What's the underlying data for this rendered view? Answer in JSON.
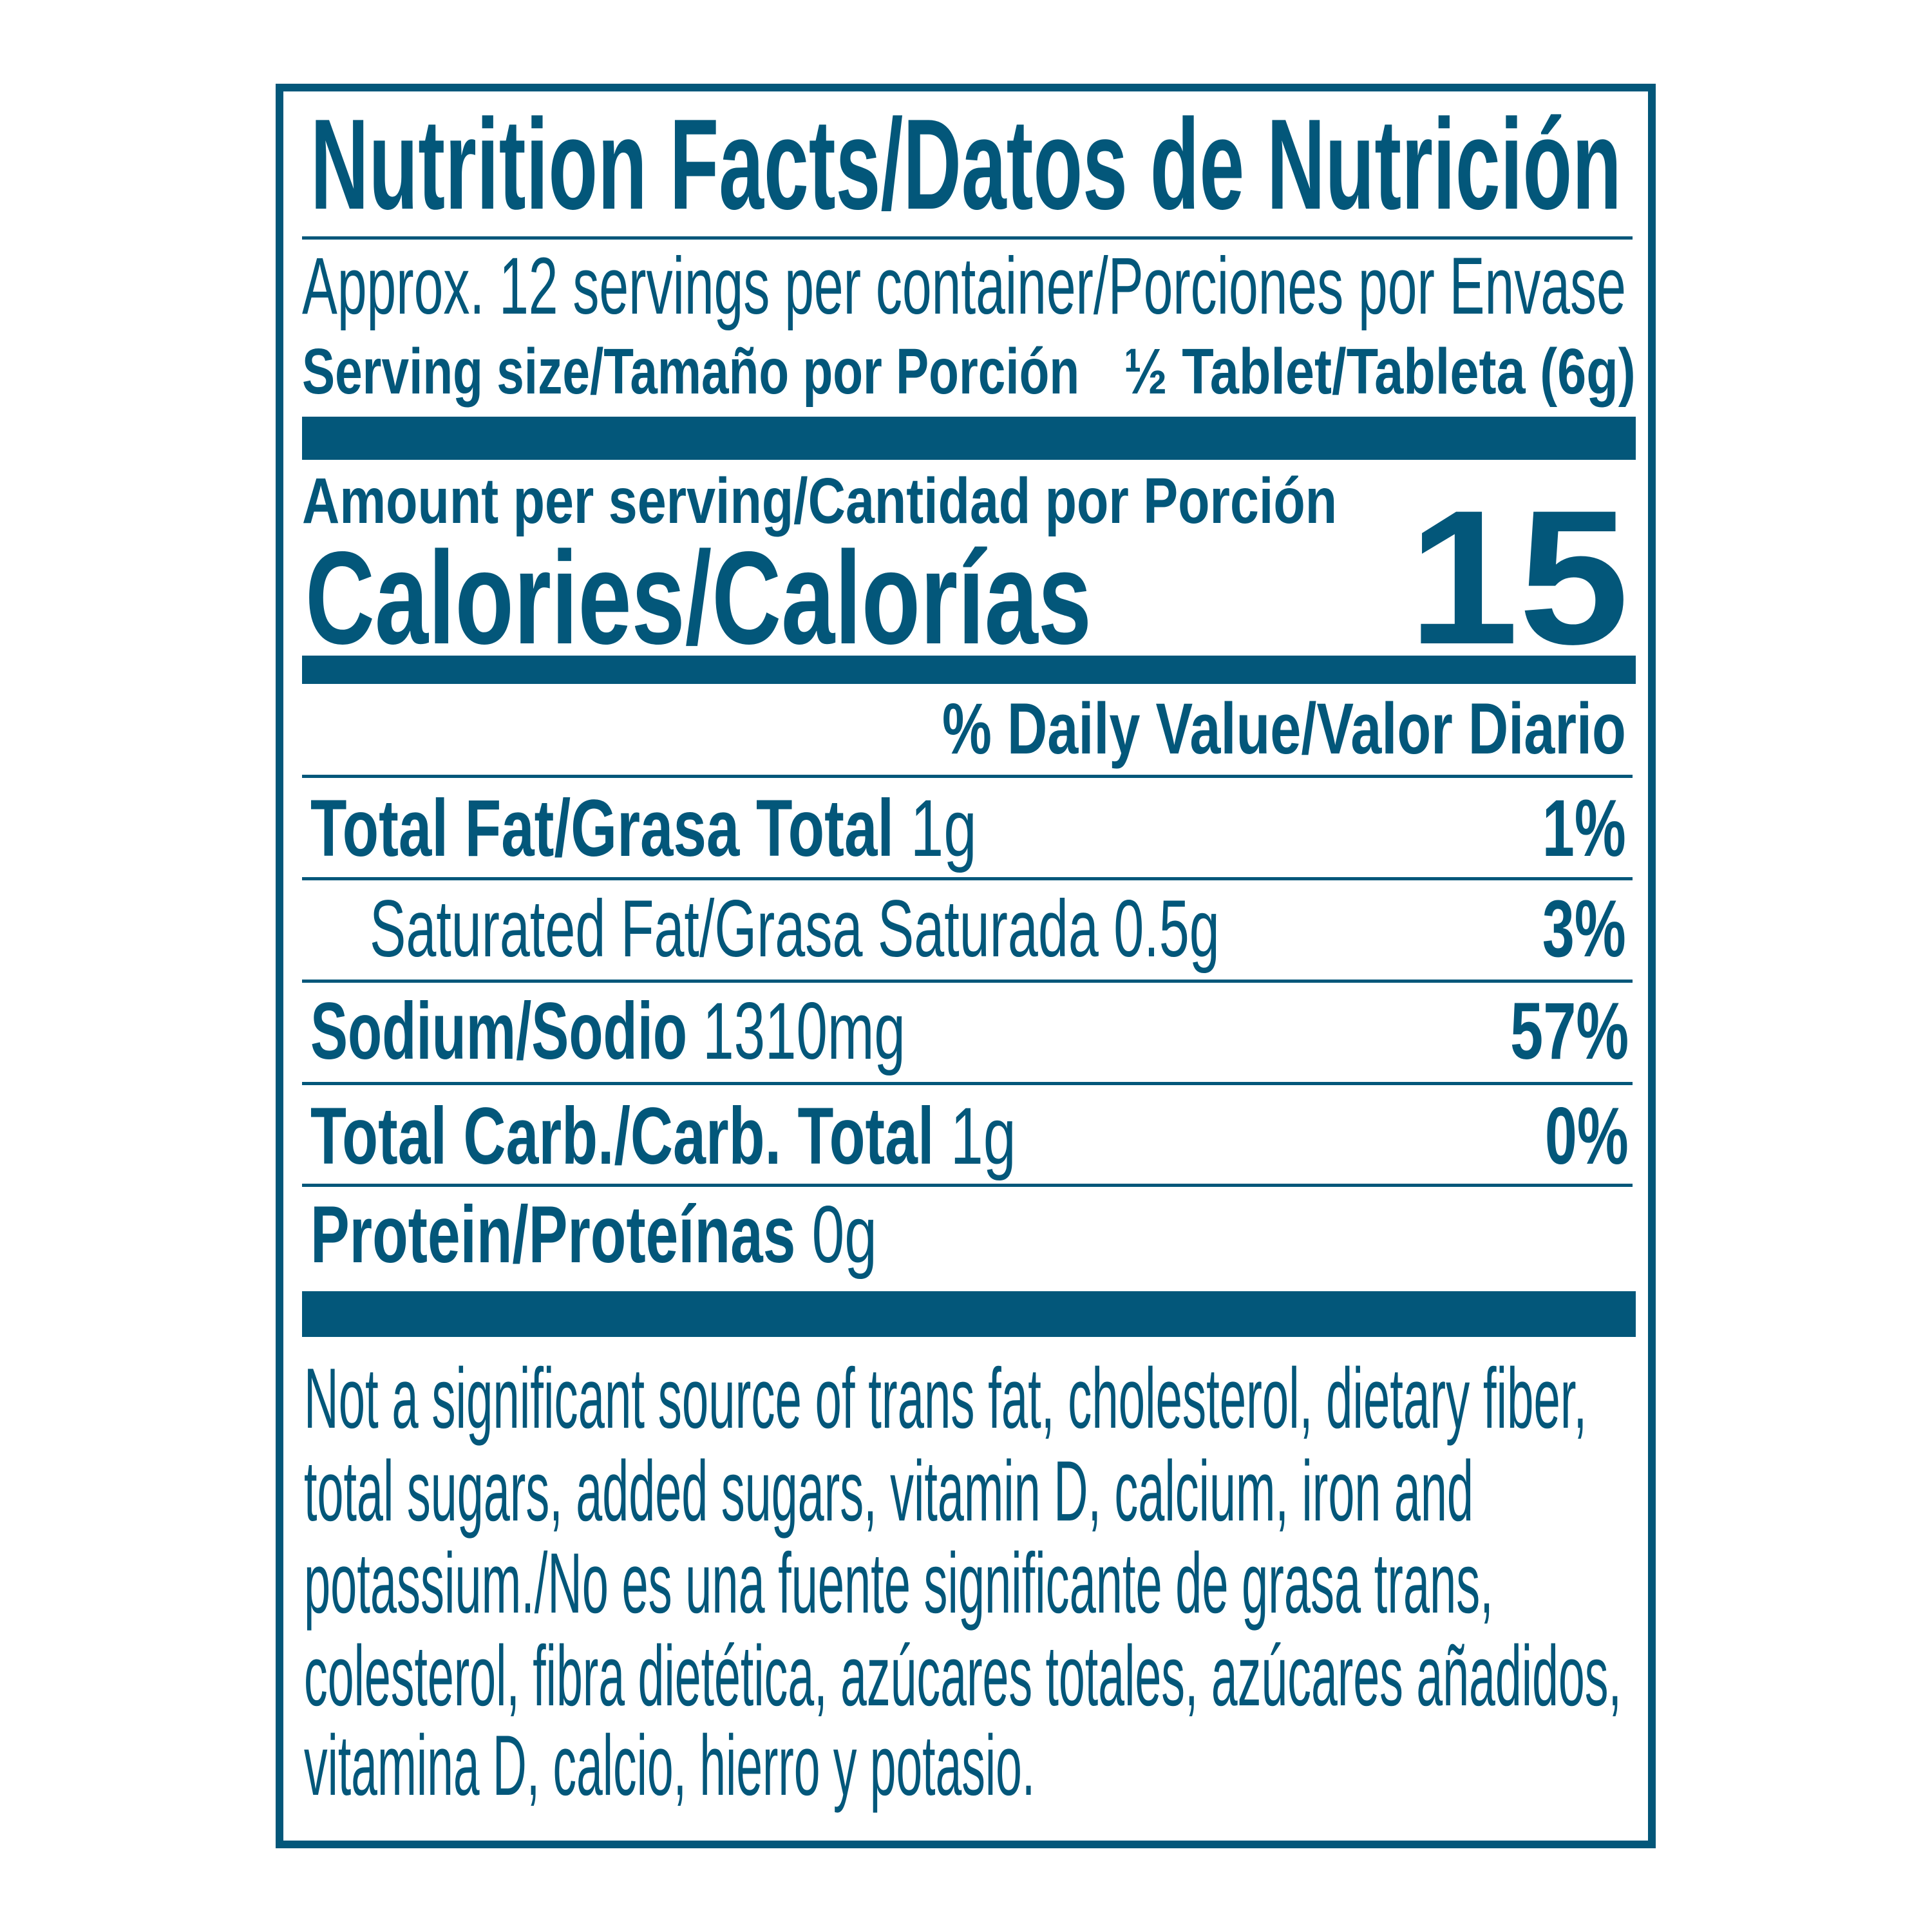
{
  "colors": {
    "ink": "#03577a",
    "background": "#ffffff"
  },
  "title": "Nutrition Facts/Datos de Nutrición",
  "servings_per_container": "Approx. 12 servings per container/Porciones por Envase",
  "serving_size": {
    "label": "Serving size/Tamaño por Porción",
    "value": "½ Tablet/Tableta (6g)"
  },
  "amount_per_serving": "Amount per serving/Cantidad por Porción",
  "calories": {
    "label": "Calories/Calorías",
    "value": "15"
  },
  "daily_value_header": "% Daily Value/Valor Diario",
  "nutrients": [
    {
      "label": "Total Fat/Grasa Total",
      "amount": "1g",
      "dv": "1%"
    },
    {
      "label": "Saturated Fat/Grasa Saturada",
      "amount": "0.5g",
      "dv": "3%"
    },
    {
      "label": "Sodium/Sodio",
      "amount": "1310mg",
      "dv": "57%"
    },
    {
      "label": "Total Carb./Carb. Total",
      "amount": "1g",
      "dv": "0%"
    },
    {
      "label": "Protein/Proteínas",
      "amount": "0g",
      "dv": ""
    }
  ],
  "footnote_lines": [
    "Not a significant source of trans fat, cholesterol, dietary fiber,",
    "total sugars, added sugars, vitamin D, calcium, iron and",
    "potassium./No es una fuente significante de grasa trans,",
    "colesterol, fibra dietética, azúcares totales, azúcares añadidos,",
    "vitamina D, calcio, hierro y potasio."
  ]
}
